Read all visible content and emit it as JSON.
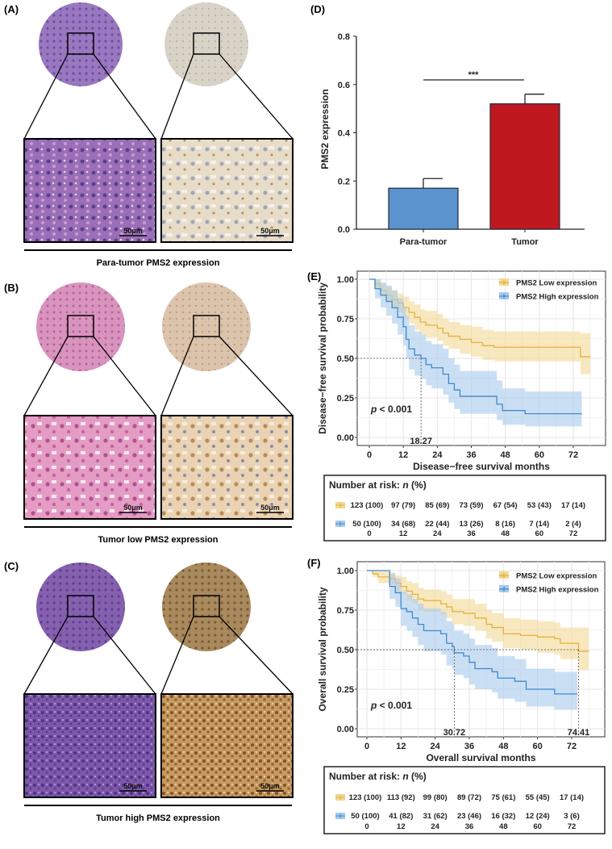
{
  "panels": {
    "A": {
      "label": "(A)",
      "caption": "Para-tumor PMS2 expression",
      "scale_left": "50μm",
      "scale_right": "50μm",
      "stain_left": "HE",
      "stain_right": "IHC-negative"
    },
    "B": {
      "label": "(B)",
      "caption": "Tumor low PMS2 expression",
      "scale_left": "50μm",
      "scale_right": "50μm",
      "stain_left": "HE",
      "stain_right": "IHC-low"
    },
    "C": {
      "label": "(C)",
      "caption": "Tumor high PMS2 expression",
      "scale_left": "50μm",
      "scale_right": "50μm",
      "stain_left": "HE",
      "stain_right": "IHC-high"
    },
    "D": {
      "label": "(D)"
    },
    "E": {
      "label": "(E)"
    },
    "F": {
      "label": "(F)"
    }
  },
  "colors": {
    "para_tumor": "#5B93CF",
    "tumor": "#C0181F",
    "low": "#E3B23C",
    "low_band": "#F3D894",
    "high": "#3F8AD0",
    "high_band": "#A8CAEC"
  },
  "chart_data": [
    {
      "id": "D",
      "type": "bar",
      "categories": [
        "Para-tumor",
        "Tumor"
      ],
      "values": [
        0.17,
        0.52
      ],
      "error": [
        0.04,
        0.04
      ],
      "ylabel": "PMS2 expression",
      "yticks": [
        "0.0",
        "0.2",
        "0.4",
        "0.6",
        "0.8"
      ],
      "ylim": [
        0,
        0.8
      ],
      "significance": "***"
    },
    {
      "id": "E",
      "type": "line",
      "ylabel": "Disease−free survival probability",
      "xlabel": "Disease−free survival months",
      "xticks": [
        "0",
        "12",
        "24",
        "36",
        "48",
        "60",
        "72"
      ],
      "yticks": [
        "0.00",
        "0.25",
        "0.50",
        "0.75",
        "1.00"
      ],
      "xlim": [
        -3,
        78.5
      ],
      "ylim": [
        -0.03,
        1.03
      ],
      "grid": true,
      "legend": "top-right",
      "pvalue_prefix": "p",
      "pvalue_text": " < 0.001",
      "median_labels": [
        {
          "x": 18.27,
          "y": 0.5,
          "text": "18.27"
        }
      ],
      "series": [
        {
          "name": "PMS2 Low expression",
          "key": "low",
          "x": [
            0,
            2,
            4,
            6,
            8,
            10,
            12,
            14,
            16,
            18,
            20,
            24,
            26,
            28,
            32,
            36,
            40,
            44,
            74,
            74.5,
            78
          ],
          "y": [
            1,
            0.97,
            0.93,
            0.9,
            0.87,
            0.85,
            0.82,
            0.79,
            0.76,
            0.73,
            0.71,
            0.69,
            0.66,
            0.64,
            0.62,
            0.6,
            0.58,
            0.57,
            0.57,
            0.51,
            0.51
          ],
          "lower": [
            1,
            0.94,
            0.89,
            0.85,
            0.81,
            0.79,
            0.75,
            0.72,
            0.68,
            0.65,
            0.63,
            0.61,
            0.58,
            0.56,
            0.53,
            0.51,
            0.49,
            0.48,
            0.48,
            0.4,
            0.4
          ],
          "upper": [
            1,
            1,
            0.97,
            0.95,
            0.93,
            0.91,
            0.89,
            0.86,
            0.84,
            0.81,
            0.8,
            0.78,
            0.75,
            0.73,
            0.71,
            0.7,
            0.68,
            0.67,
            0.67,
            0.66,
            0.66
          ]
        },
        {
          "name": "PMS2 High expression",
          "key": "high",
          "x": [
            0,
            2,
            4,
            6,
            8,
            10,
            12,
            13,
            14,
            16,
            18.27,
            20,
            22,
            26,
            28,
            30,
            32,
            44,
            45,
            47,
            55,
            75
          ],
          "y": [
            1,
            0.94,
            0.9,
            0.86,
            0.82,
            0.76,
            0.7,
            0.62,
            0.56,
            0.52,
            0.5,
            0.46,
            0.44,
            0.4,
            0.34,
            0.3,
            0.26,
            0.26,
            0.21,
            0.17,
            0.15,
            0.15
          ],
          "lower": [
            1,
            0.88,
            0.82,
            0.77,
            0.72,
            0.65,
            0.58,
            0.5,
            0.43,
            0.39,
            0.37,
            0.33,
            0.31,
            0.27,
            0.22,
            0.18,
            0.15,
            0.15,
            0.11,
            0.08,
            0.07,
            0.07
          ],
          "upper": [
            1,
            1,
            0.98,
            0.96,
            0.93,
            0.88,
            0.83,
            0.77,
            0.71,
            0.67,
            0.65,
            0.61,
            0.59,
            0.56,
            0.5,
            0.46,
            0.42,
            0.42,
            0.36,
            0.31,
            0.29,
            0.29
          ]
        }
      ],
      "risk_table": {
        "title_prefix": "Number at risk: ",
        "title_n": "n",
        "title_suffix": " (%)",
        "times": [
          "0",
          "12",
          "24",
          "36",
          "48",
          "60",
          "72"
        ],
        "rows": [
          {
            "key": "low",
            "values": [
              "123 (100)",
              "97 (79)",
              "85 (69)",
              "73 (59)",
              "67 (54)",
              "53 (43)",
              "17 (14)"
            ]
          },
          {
            "key": "high",
            "values": [
              "50 (100)",
              "34 (68)",
              "22 (44)",
              "13 (26)",
              "8 (16)",
              "7 (14)",
              "2 (4)"
            ]
          }
        ]
      }
    },
    {
      "id": "F",
      "type": "line",
      "ylabel": "Overall survival probability",
      "xlabel": "Overall survival months",
      "xticks": [
        "0",
        "12",
        "24",
        "36",
        "48",
        "60",
        "72"
      ],
      "yticks": [
        "0.00",
        "0.25",
        "0.50",
        "0.75",
        "1.00"
      ],
      "xlim": [
        -3,
        78.5
      ],
      "ylim": [
        -0.03,
        1.03
      ],
      "grid": true,
      "legend": "top-right",
      "pvalue_prefix": "p",
      "pvalue_text": " < 0.001",
      "median_labels": [
        {
          "x": 30.72,
          "y": 0.5,
          "text": "30.72"
        },
        {
          "x": 74.41,
          "y": 0.5,
          "text": "74.41"
        }
      ],
      "series": [
        {
          "name": "PMS2 Low expression",
          "key": "low",
          "x": [
            0,
            2,
            4,
            8,
            10,
            12,
            14,
            16,
            18,
            20,
            26,
            28,
            30,
            34,
            38,
            42,
            44,
            48,
            54,
            60,
            66,
            68,
            73,
            74.41,
            78
          ],
          "y": [
            1,
            0.98,
            0.96,
            0.95,
            0.92,
            0.9,
            0.87,
            0.85,
            0.82,
            0.81,
            0.79,
            0.77,
            0.74,
            0.73,
            0.7,
            0.66,
            0.64,
            0.6,
            0.59,
            0.58,
            0.57,
            0.54,
            0.54,
            0.49,
            0.49
          ],
          "lower": [
            1,
            0.96,
            0.92,
            0.91,
            0.87,
            0.85,
            0.81,
            0.79,
            0.75,
            0.74,
            0.72,
            0.7,
            0.66,
            0.65,
            0.62,
            0.57,
            0.55,
            0.51,
            0.5,
            0.48,
            0.47,
            0.44,
            0.44,
            0.37,
            0.37
          ],
          "upper": [
            1,
            1,
            1,
            0.99,
            0.97,
            0.96,
            0.93,
            0.92,
            0.89,
            0.88,
            0.87,
            0.85,
            0.82,
            0.82,
            0.79,
            0.75,
            0.73,
            0.7,
            0.69,
            0.68,
            0.67,
            0.64,
            0.64,
            0.64,
            0.64
          ]
        },
        {
          "name": "PMS2 High expression",
          "key": "high",
          "x": [
            0,
            6,
            8,
            10,
            12,
            14,
            16,
            18,
            20,
            26,
            28,
            30,
            30.72,
            34,
            36,
            38,
            44,
            46,
            52,
            56,
            62,
            66,
            74
          ],
          "y": [
            1,
            1,
            0.9,
            0.86,
            0.76,
            0.74,
            0.7,
            0.66,
            0.62,
            0.6,
            0.54,
            0.52,
            0.48,
            0.46,
            0.42,
            0.38,
            0.36,
            0.32,
            0.3,
            0.25,
            0.25,
            0.22,
            0.22
          ],
          "lower": [
            1,
            1,
            0.82,
            0.77,
            0.65,
            0.62,
            0.58,
            0.53,
            0.49,
            0.47,
            0.4,
            0.38,
            0.34,
            0.32,
            0.28,
            0.25,
            0.23,
            0.19,
            0.17,
            0.14,
            0.14,
            0.12,
            0.12
          ],
          "upper": [
            1,
            1,
            0.98,
            0.95,
            0.87,
            0.85,
            0.82,
            0.79,
            0.76,
            0.74,
            0.68,
            0.66,
            0.62,
            0.6,
            0.57,
            0.53,
            0.51,
            0.46,
            0.44,
            0.38,
            0.38,
            0.36,
            0.36
          ]
        }
      ],
      "risk_table": {
        "title_prefix": "Number at risk: ",
        "title_n": "n",
        "title_suffix": " (%)",
        "times": [
          "0",
          "12",
          "24",
          "36",
          "48",
          "60",
          "72"
        ],
        "rows": [
          {
            "key": "low",
            "values": [
              "123 (100)",
              "113 (92)",
              "99 (80)",
              "89 (72)",
              "75 (61)",
              "55 (45)",
              "17 (14)"
            ]
          },
          {
            "key": "high",
            "values": [
              "50 (100)",
              "41 (82)",
              "31 (62)",
              "23 (46)",
              "16 (32)",
              "12 (24)",
              "3 (6)"
            ]
          }
        ]
      }
    }
  ]
}
